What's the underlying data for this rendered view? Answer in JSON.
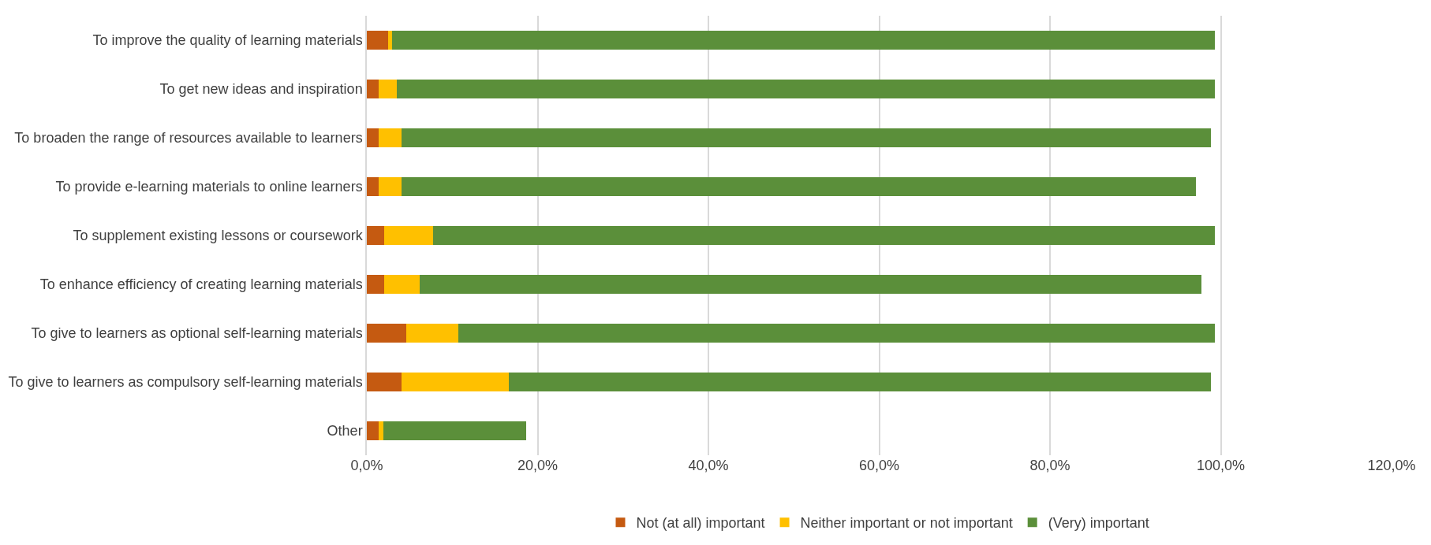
{
  "chart_data": {
    "type": "bar",
    "orientation": "horizontal",
    "stacked": true,
    "categories": [
      "To improve the quality of learning materials",
      "To get new ideas and inspiration",
      "To broaden the range of resources available to learners",
      "To provide e-learning materials to online learners",
      "To supplement existing lessons or coursework",
      "To enhance efficiency of creating learning materials",
      "To give to learners as optional self-learning materials",
      "To give to learners as compulsory self-learning materials",
      "Other"
    ],
    "series": [
      {
        "name": "Not (at all) important",
        "color": "#c55a11",
        "values": [
          2.5,
          1.4,
          1.4,
          1.4,
          2.0,
          2.0,
          4.6,
          4.1,
          1.4
        ]
      },
      {
        "name": "Neither important or not important",
        "color": "#ffc000",
        "values": [
          0.5,
          2.1,
          2.7,
          2.7,
          5.8,
          4.2,
          6.1,
          12.5,
          0.5
        ]
      },
      {
        "name": "(Very) important",
        "color": "#5b8f3a",
        "values": [
          96.3,
          95.8,
          94.7,
          93.0,
          91.5,
          91.5,
          88.6,
          82.2,
          16.8
        ]
      }
    ],
    "xlim": [
      0,
      120
    ],
    "xticks": [
      {
        "value": 0,
        "label": "0,0%"
      },
      {
        "value": 20,
        "label": "20,0%"
      },
      {
        "value": 40,
        "label": "40,0%"
      },
      {
        "value": 60,
        "label": "60,0%"
      },
      {
        "value": 80,
        "label": "80,0%"
      },
      {
        "value": 100,
        "label": "100,0%"
      },
      {
        "value": 120,
        "label": "120,0%"
      }
    ],
    "grid": "x",
    "legend": "bottom"
  }
}
